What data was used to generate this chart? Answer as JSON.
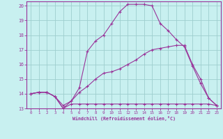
{
  "xlabel": "Windchill (Refroidissement éolien,°C)",
  "bg_color": "#c8f0f0",
  "grid_color": "#9ecece",
  "line_color": "#993399",
  "xlim": [
    -0.5,
    23.5
  ],
  "ylim": [
    13,
    20.3
  ],
  "xticks": [
    0,
    1,
    2,
    3,
    4,
    5,
    6,
    7,
    8,
    9,
    10,
    11,
    12,
    13,
    14,
    15,
    16,
    17,
    18,
    19,
    20,
    21,
    22,
    23
  ],
  "yticks": [
    13,
    14,
    15,
    16,
    17,
    18,
    19,
    20
  ],
  "line1_x": [
    0,
    1,
    2,
    3,
    4,
    4,
    5,
    6,
    7,
    8,
    9,
    10,
    11,
    12,
    13,
    14,
    15,
    16,
    17,
    18,
    19,
    20,
    21,
    22,
    23
  ],
  "line1_y": [
    14.0,
    14.1,
    14.1,
    13.8,
    13.0,
    13.0,
    13.3,
    13.3,
    13.3,
    13.3,
    13.3,
    13.3,
    13.3,
    13.3,
    13.3,
    13.3,
    13.3,
    13.3,
    13.3,
    13.3,
    13.3,
    13.3,
    13.3,
    13.3,
    13.2
  ],
  "line2_x": [
    0,
    1,
    2,
    3,
    4,
    5,
    6,
    7,
    8,
    9,
    10,
    11,
    12,
    13,
    14,
    15,
    16,
    17,
    18,
    19,
    20,
    21,
    22,
    23
  ],
  "line2_y": [
    14.0,
    14.1,
    14.1,
    13.8,
    13.2,
    13.5,
    14.1,
    14.5,
    15.0,
    15.4,
    15.5,
    15.7,
    16.0,
    16.3,
    16.7,
    17.0,
    17.1,
    17.2,
    17.3,
    17.3,
    16.0,
    15.0,
    13.7,
    13.2
  ],
  "line3_x": [
    0,
    1,
    2,
    3,
    4,
    5,
    6,
    7,
    8,
    9,
    10,
    11,
    12,
    13,
    14,
    15,
    16,
    17,
    18,
    19,
    20,
    21,
    22,
    23
  ],
  "line3_y": [
    14.0,
    14.1,
    14.1,
    13.8,
    13.0,
    13.5,
    14.4,
    16.9,
    17.6,
    18.0,
    18.8,
    19.6,
    20.1,
    20.1,
    20.1,
    20.0,
    18.8,
    18.3,
    17.7,
    17.2,
    15.9,
    14.7,
    13.7,
    13.2
  ]
}
